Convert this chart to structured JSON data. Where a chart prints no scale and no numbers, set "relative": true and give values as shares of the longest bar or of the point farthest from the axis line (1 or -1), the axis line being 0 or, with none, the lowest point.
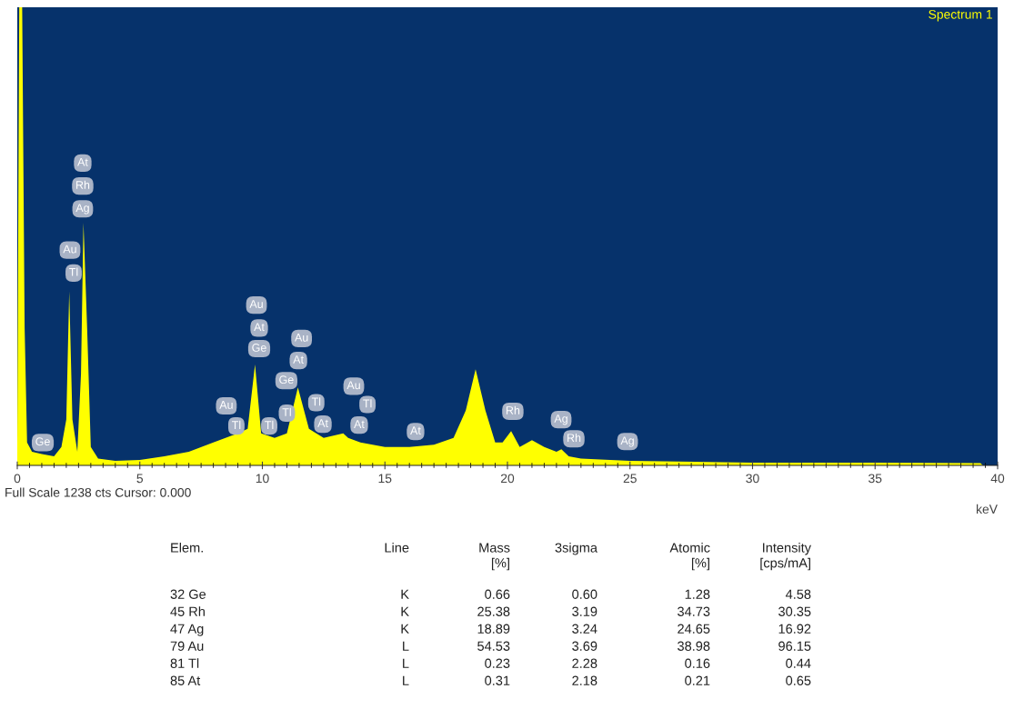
{
  "chart_data": {
    "type": "area",
    "relative": true,
    "xlabel": "keV",
    "xlim": [
      0,
      40
    ],
    "xticks": [
      0,
      5,
      10,
      15,
      20,
      25,
      30,
      35,
      40
    ],
    "grid": false,
    "x": [
      0.0,
      0.08,
      0.2,
      0.3,
      0.4,
      0.6,
      1.0,
      1.5,
      1.8,
      2.0,
      2.12,
      2.25,
      2.45,
      2.6,
      2.7,
      2.85,
      3.0,
      3.3,
      4,
      5,
      6,
      7,
      8,
      9,
      9.4,
      9.7,
      9.95,
      10.5,
      11,
      11.45,
      11.9,
      12.5,
      13.3,
      13.5,
      14,
      15,
      16,
      17,
      17.8,
      18.3,
      18.7,
      19.1,
      19.5,
      19.8,
      20.15,
      20.5,
      21,
      21.5,
      22,
      22.2,
      22.5,
      23,
      25,
      30,
      35,
      39.3,
      39.4,
      40
    ],
    "series": [
      {
        "color": "#ffff00",
        "values": [
          0.05,
          1.0,
          1.0,
          0.3,
          0.05,
          0.03,
          0.025,
          0.02,
          0.04,
          0.1,
          0.38,
          0.1,
          0.03,
          0.2,
          0.53,
          0.3,
          0.04,
          0.015,
          0.01,
          0.012,
          0.02,
          0.03,
          0.05,
          0.07,
          0.08,
          0.22,
          0.07,
          0.06,
          0.07,
          0.17,
          0.08,
          0.06,
          0.07,
          0.06,
          0.05,
          0.04,
          0.04,
          0.045,
          0.06,
          0.12,
          0.21,
          0.12,
          0.05,
          0.05,
          0.075,
          0.04,
          0.055,
          0.04,
          0.03,
          0.035,
          0.02,
          0.015,
          0.01,
          0.006,
          0.006,
          0.005,
          0.0,
          0.0
        ]
      }
    ],
    "annotations": [
      {
        "text": "Ge",
        "x": 1.04,
        "y": 0.05
      },
      {
        "text": "Au",
        "x": 2.15,
        "y": 0.47
      },
      {
        "text": "Tl",
        "x": 2.3,
        "y": 0.42
      },
      {
        "text": "At",
        "x": 2.67,
        "y": 0.66
      },
      {
        "text": "Rh",
        "x": 2.67,
        "y": 0.61
      },
      {
        "text": "Ag",
        "x": 2.67,
        "y": 0.56
      },
      {
        "text": "Au",
        "x": 8.53,
        "y": 0.13
      },
      {
        "text": "Tl",
        "x": 8.94,
        "y": 0.086
      },
      {
        "text": "Au",
        "x": 9.76,
        "y": 0.35
      },
      {
        "text": "At",
        "x": 9.87,
        "y": 0.3
      },
      {
        "text": "Ge",
        "x": 9.87,
        "y": 0.255
      },
      {
        "text": "Tl",
        "x": 10.28,
        "y": 0.086
      },
      {
        "text": "Tl",
        "x": 11.0,
        "y": 0.114
      },
      {
        "text": "Ge",
        "x": 10.98,
        "y": 0.185
      },
      {
        "text": "Au",
        "x": 11.6,
        "y": 0.277
      },
      {
        "text": "At",
        "x": 11.47,
        "y": 0.229
      },
      {
        "text": "Tl",
        "x": 12.2,
        "y": 0.137
      },
      {
        "text": "At",
        "x": 12.47,
        "y": 0.09
      },
      {
        "text": "Au",
        "x": 13.73,
        "y": 0.173
      },
      {
        "text": "Tl",
        "x": 14.29,
        "y": 0.133
      },
      {
        "text": "At",
        "x": 13.95,
        "y": 0.088
      },
      {
        "text": "At",
        "x": 16.25,
        "y": 0.074
      },
      {
        "text": "Rh",
        "x": 20.22,
        "y": 0.118
      },
      {
        "text": "Ag",
        "x": 22.19,
        "y": 0.1
      },
      {
        "text": "Rh",
        "x": 22.71,
        "y": 0.058
      },
      {
        "text": "Ag",
        "x": 24.9,
        "y": 0.052
      },
      "Spectrum 1",
      "Full Scale 1238 cts Cursor: 0.000",
      "Elem.",
      "Line",
      "Mass\n[%]",
      "3sigma",
      "Atomic\n[%]",
      "Intensity\n[cps/mA]",
      "32 Ge",
      "K",
      "0.66",
      "0.60",
      "1.28",
      "4.58",
      "45 Rh",
      "K",
      "25.38",
      "3.19",
      "34.73",
      "30.35",
      "47 Ag",
      "K",
      "18.89",
      "3.24",
      "24.65",
      "16.92",
      "79 Au",
      "L",
      "54.53",
      "3.69",
      "38.98",
      "96.15",
      "81 Tl",
      "L",
      "0.23",
      "2.28",
      "0.16",
      "0.44",
      "85 At",
      "L",
      "0.31",
      "2.18",
      "0.21",
      "0.65"
    ]
  }
}
